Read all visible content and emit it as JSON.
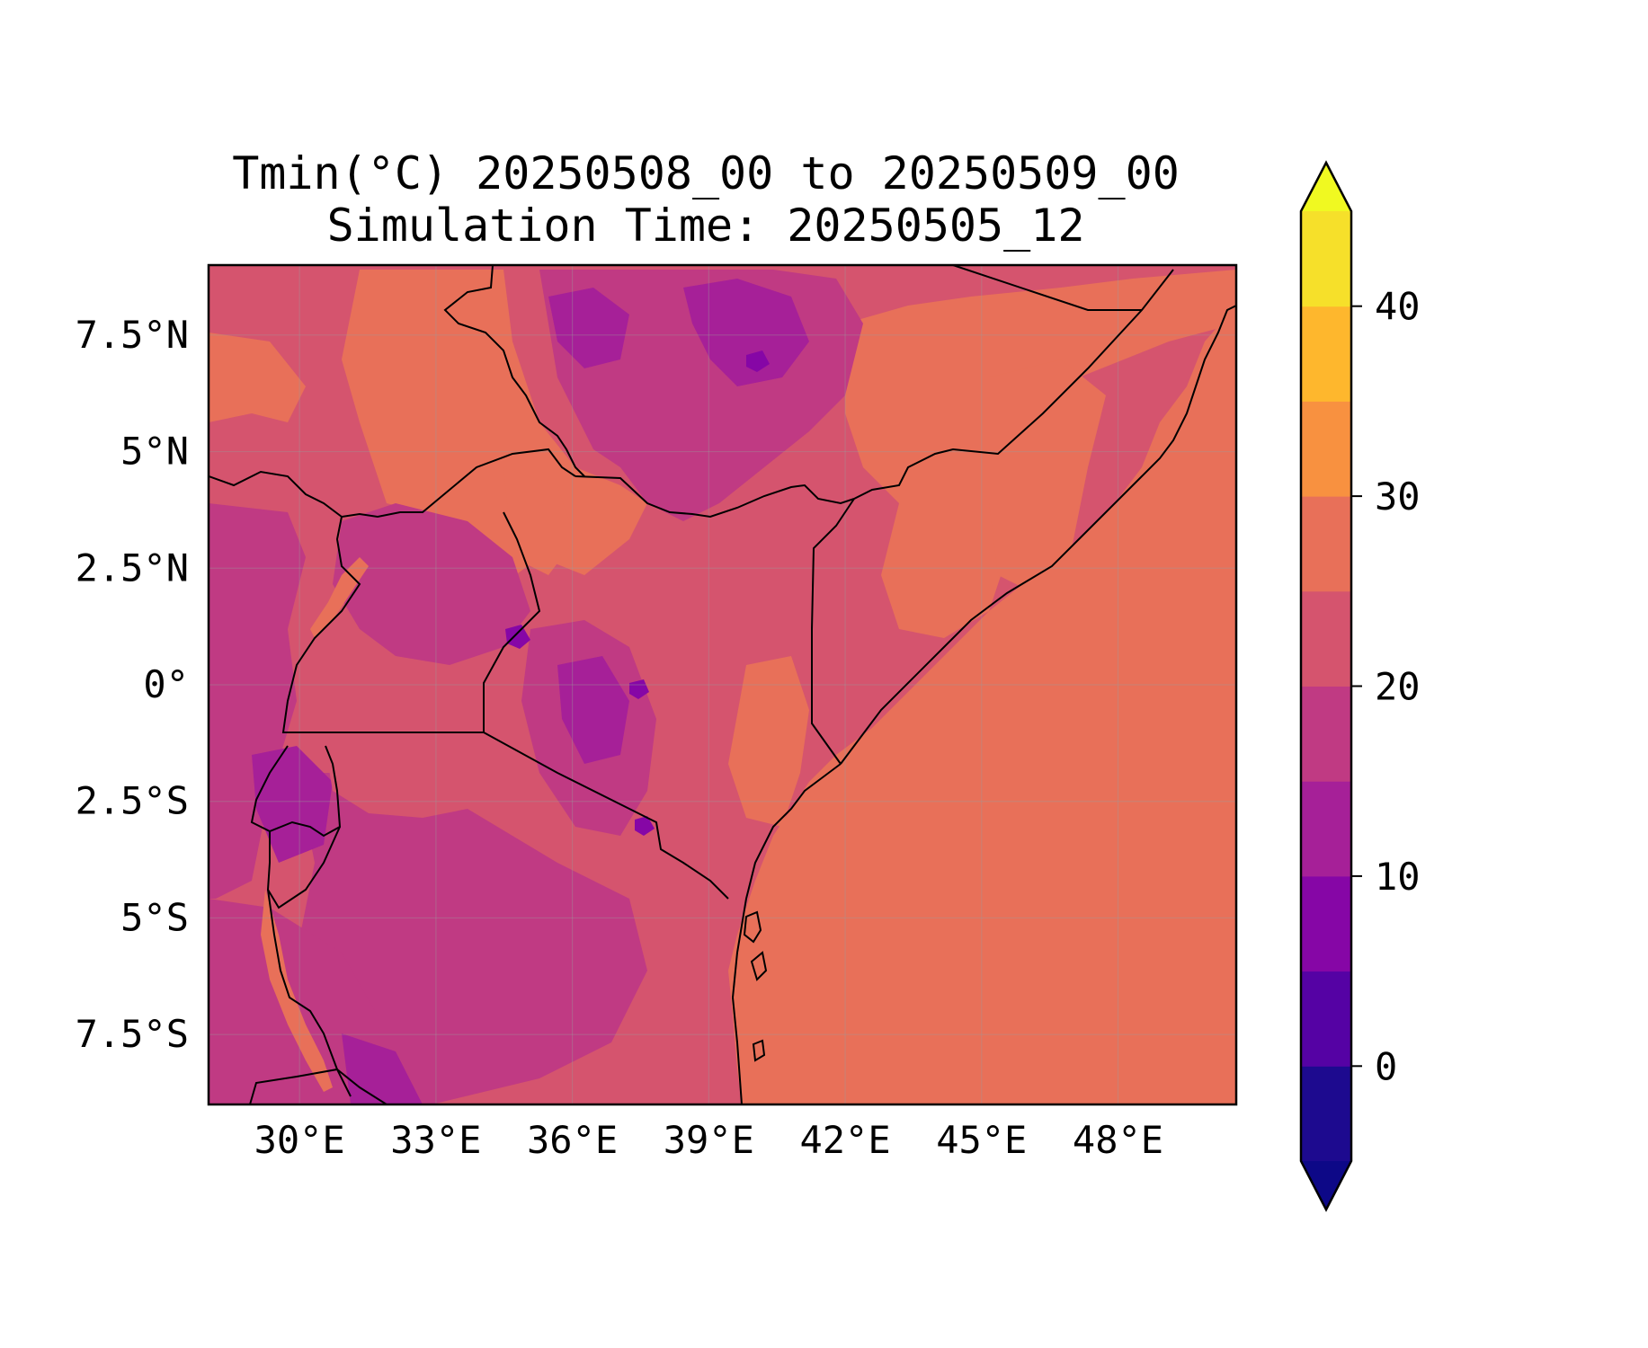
{
  "title": {
    "line1": "Tmin(°C) 20250508_00 to 20250509_00",
    "line2": "Simulation Time: 20250505_12"
  },
  "map": {
    "extent": {
      "lon_min": 28.0,
      "lon_max": 50.6,
      "lat_min": -9.0,
      "lat_max": 9.0
    },
    "lon_ticks": [
      30,
      33,
      36,
      39,
      42,
      45,
      48
    ],
    "lon_tick_labels": [
      "30°E",
      "33°E",
      "36°E",
      "39°E",
      "42°E",
      "45°E",
      "48°E"
    ],
    "lat_ticks": [
      7.5,
      5,
      2.5,
      0,
      -2.5,
      -5,
      -7.5
    ],
    "lat_tick_labels": [
      "7.5°N",
      "5°N",
      "2.5°N",
      "0°",
      "2.5°S",
      "5°S",
      "7.5°S"
    ],
    "grid": true,
    "variable": "Tmin",
    "units": "°C"
  },
  "colorbar": {
    "levels": [
      -5,
      0,
      5,
      10,
      15,
      20,
      25,
      30,
      35,
      40,
      45
    ],
    "colors": [
      "#1d0a8f",
      "#5502a4",
      "#8606a6",
      "#a62098",
      "#c03a83",
      "#d5546e",
      "#e87059",
      "#f89140",
      "#feb72d",
      "#f6e02a"
    ],
    "under_color": "#0d0887",
    "over_color": "#f0f921",
    "extend": "both",
    "tick_values": [
      0,
      10,
      20,
      30,
      40
    ],
    "tick_labels": [
      "0",
      "10",
      "20",
      "30",
      "40"
    ]
  },
  "colors": {
    "ocean": "#e87059",
    "land_base": "#d5546e",
    "border": "#000000"
  }
}
